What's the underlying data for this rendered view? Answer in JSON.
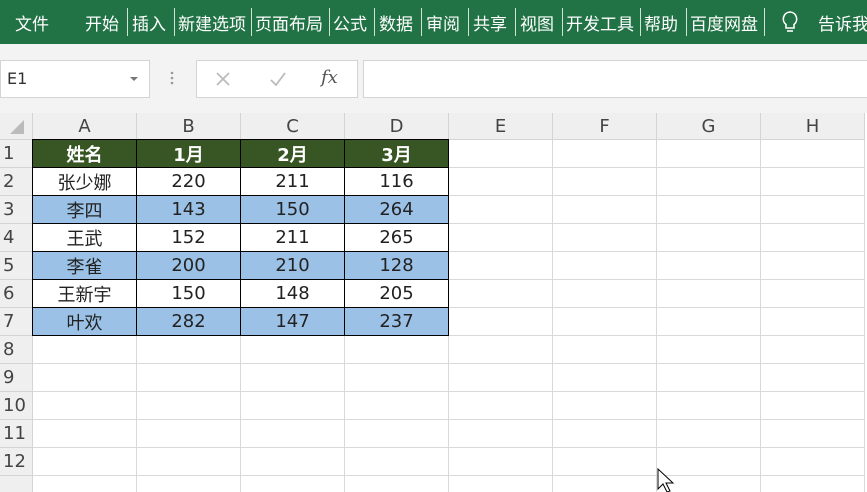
{
  "ribbon": {
    "tabs": [
      "文件",
      "开始",
      "插入",
      "新建选项",
      "页面布局",
      "公式",
      "数据",
      "审阅",
      "共享",
      "视图",
      "开发工具",
      "帮助",
      "百度网盘"
    ],
    "tell_me": "告诉我"
  },
  "formula_bar": {
    "name_box": "E1",
    "function_icon": "fx"
  },
  "sheet": {
    "columns": [
      "A",
      "B",
      "C",
      "D",
      "E",
      "F",
      "G",
      "H"
    ],
    "row_numbers": [
      1,
      2,
      3,
      4,
      5,
      6,
      7,
      8,
      9,
      10,
      11,
      12
    ],
    "header": [
      "姓名",
      "1月",
      "2月",
      "3月"
    ],
    "rows": [
      [
        "张少娜",
        220,
        211,
        116
      ],
      [
        "李四",
        143,
        150,
        264
      ],
      [
        "王武",
        152,
        211,
        265
      ],
      [
        "李雀",
        200,
        210,
        128
      ],
      [
        "王新宇",
        150,
        148,
        205
      ],
      [
        "叶欢",
        282,
        147,
        237
      ]
    ]
  }
}
